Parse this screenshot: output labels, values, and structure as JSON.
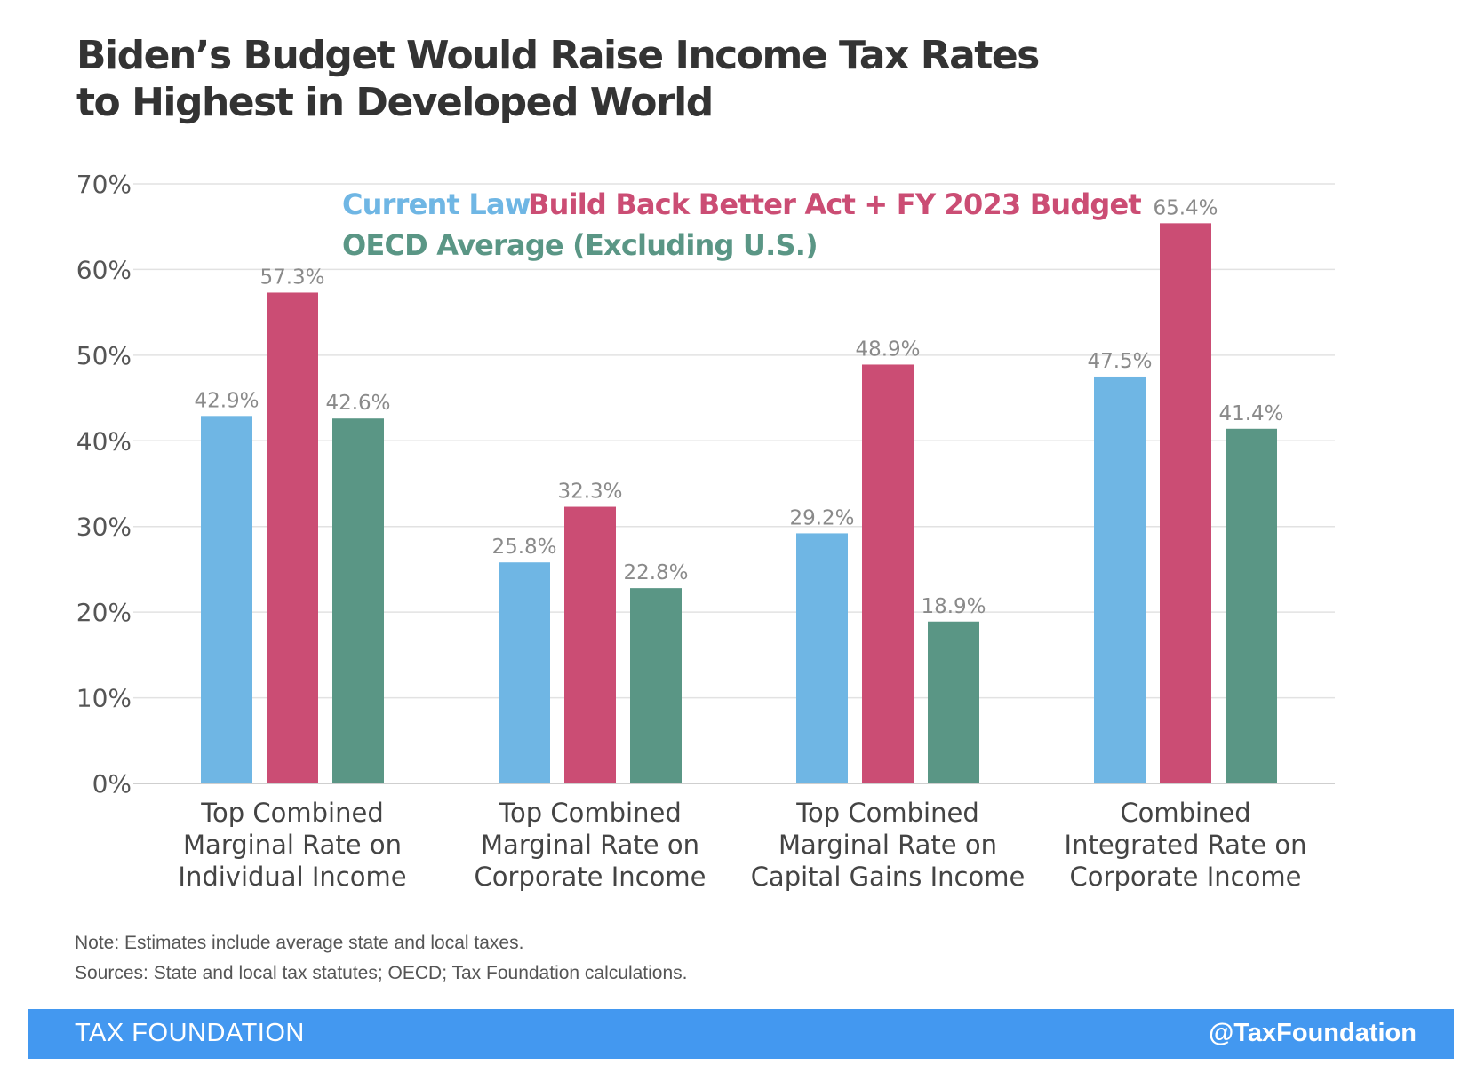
{
  "title": {
    "line1": "Biden’s Budget Would Raise Income Tax Rates",
    "line2": "to Highest in Developed World"
  },
  "chart_data": {
    "type": "bar",
    "title": "Biden’s Budget Would Raise Income Tax Rates to Highest in Developed World",
    "categories": [
      [
        "Top Combined",
        "Marginal Rate on",
        "Individual Income"
      ],
      [
        "Top Combined",
        "Marginal Rate on",
        "Corporate Income"
      ],
      [
        "Top Combined",
        "Marginal Rate on",
        "Capital Gains Income"
      ],
      [
        "Combined",
        "Integrated Rate on",
        "Corporate Income"
      ]
    ],
    "series": [
      {
        "name": "Current Law",
        "color": "#6fb6e4",
        "values": [
          42.9,
          25.8,
          29.2,
          47.5
        ]
      },
      {
        "name": "Build Back Better Act + FY 2023 Budget",
        "color": "#cb4d74",
        "values": [
          57.3,
          32.3,
          48.9,
          65.4
        ]
      },
      {
        "name": "OECD Average (Excluding U.S.)",
        "color": "#5a9685",
        "values": [
          42.6,
          22.8,
          18.9,
          41.4
        ]
      }
    ],
    "value_suffix": "%",
    "ylim": [
      0,
      70
    ],
    "yticks": [
      0,
      10,
      20,
      30,
      40,
      50,
      60,
      70
    ],
    "ytick_labels": [
      "0%",
      "10%",
      "20%",
      "30%",
      "40%",
      "50%",
      "60%",
      "70%"
    ],
    "grid": true,
    "legend": "top, inside plot"
  },
  "notes": {
    "note": "Note: Estimates include average state and local taxes.",
    "sources": "Sources: State and local tax statutes; OECD; Tax Foundation calculations."
  },
  "footer": {
    "brand": "TAX FOUNDATION",
    "handle": "@TaxFoundation",
    "color": "#4398f0"
  }
}
